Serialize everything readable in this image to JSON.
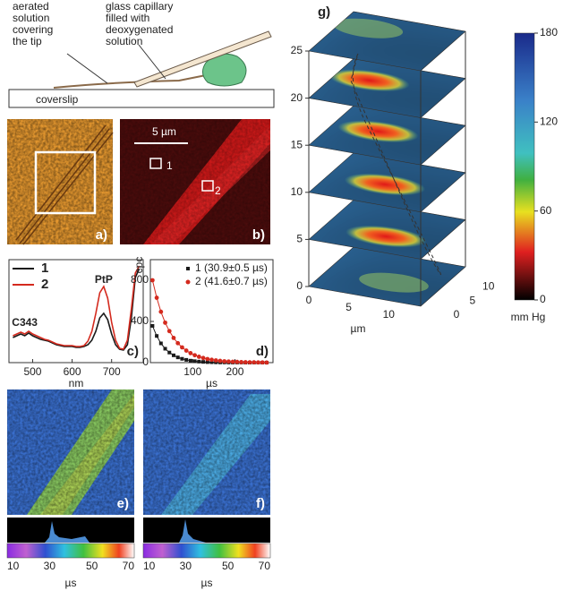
{
  "schematic": {
    "tip_note": [
      "aerated",
      "solution",
      "covering",
      "the tip"
    ],
    "capillary_note": [
      "glass capillary",
      "filled with",
      "deoxygenated",
      "solution"
    ],
    "coverslip": "coverslip"
  },
  "panel_a": {
    "label": "a)"
  },
  "panel_b": {
    "label": "b)",
    "scale_bar": "5 µm",
    "roi_1": "1",
    "roi_2": "2"
  },
  "chart_data": [
    {
      "type": "line",
      "panel_label": "c)",
      "x_label": "nm",
      "annotations": [
        "PtP",
        "C343"
      ],
      "x": [
        450,
        460,
        470,
        480,
        490,
        500,
        510,
        520,
        530,
        540,
        550,
        560,
        570,
        580,
        590,
        600,
        610,
        620,
        630,
        640,
        650,
        660,
        670,
        680,
        690,
        700,
        710,
        720,
        730,
        740,
        750,
        760,
        770
      ],
      "series": [
        {
          "name": "1",
          "color": "#1a1a1a",
          "values": [
            0.28,
            0.3,
            0.32,
            0.3,
            0.33,
            0.3,
            0.28,
            0.26,
            0.25,
            0.24,
            0.22,
            0.2,
            0.19,
            0.18,
            0.18,
            0.18,
            0.17,
            0.17,
            0.18,
            0.2,
            0.25,
            0.35,
            0.5,
            0.55,
            0.48,
            0.32,
            0.2,
            0.15,
            0.14,
            0.2,
            0.5,
            0.95,
            1.05
          ]
        },
        {
          "name": "2",
          "color": "#d42a1e",
          "values": [
            0.3,
            0.32,
            0.34,
            0.32,
            0.35,
            0.32,
            0.3,
            0.28,
            0.26,
            0.25,
            0.23,
            0.21,
            0.2,
            0.19,
            0.19,
            0.19,
            0.18,
            0.18,
            0.19,
            0.24,
            0.35,
            0.55,
            0.78,
            0.85,
            0.72,
            0.45,
            0.25,
            0.16,
            0.15,
            0.25,
            0.6,
            1.0,
            1.08
          ]
        }
      ],
      "xlim": [
        440,
        780
      ],
      "ylim": [
        0,
        1.15
      ],
      "xticks": [
        500,
        600,
        700
      ]
    },
    {
      "type": "scatter",
      "panel_label": "d)",
      "x_label": "µs",
      "y_label": "cpc",
      "x": [
        5,
        15,
        25,
        35,
        45,
        55,
        65,
        75,
        85,
        95,
        105,
        115,
        125,
        135,
        145,
        155,
        165,
        175,
        185,
        195,
        205,
        215,
        225,
        235,
        245,
        255,
        265,
        275
      ],
      "series": [
        {
          "name": "1 (30.9±0.5 µs)",
          "color": "#1a1a1a",
          "values": [
            357,
            259,
            187,
            135,
            98,
            71,
            51,
            37,
            27,
            19,
            14,
            10,
            7,
            5,
            4,
            3,
            2,
            2,
            1,
            1,
            1,
            1,
            0,
            0,
            0,
            0,
            0,
            0
          ]
        },
        {
          "name": "2 (41.6±0.7 µs)",
          "color": "#d42a1e",
          "values": [
            800,
            630,
            494,
            388,
            306,
            240,
            189,
            148,
            117,
            92,
            72,
            57,
            45,
            35,
            28,
            22,
            17,
            13,
            11,
            8,
            7,
            5,
            4,
            3,
            3,
            2,
            2,
            1
          ]
        }
      ],
      "xlim": [
        0,
        290
      ],
      "ylim": [
        0,
        1000
      ],
      "xticks": [
        100,
        200
      ],
      "yticks": [
        0,
        400,
        800
      ]
    }
  ],
  "panel_e": {
    "label": "e)",
    "colorbar_ticks": [
      10,
      30,
      50,
      70
    ],
    "unit": "µs"
  },
  "panel_f": {
    "label": "f)",
    "colorbar_ticks": [
      10,
      30,
      50,
      70
    ],
    "unit": "µs"
  },
  "panel_g": {
    "label": "g)",
    "z_ticks": [
      0,
      5,
      10,
      15,
      20,
      25
    ],
    "x_ticks": [
      0,
      5,
      10
    ],
    "y_ticks": [
      0,
      5,
      10
    ],
    "x_unit": "µm",
    "colorbar_ticks": [
      0,
      60,
      120,
      180
    ],
    "colorbar_unit": "mm Hg"
  }
}
